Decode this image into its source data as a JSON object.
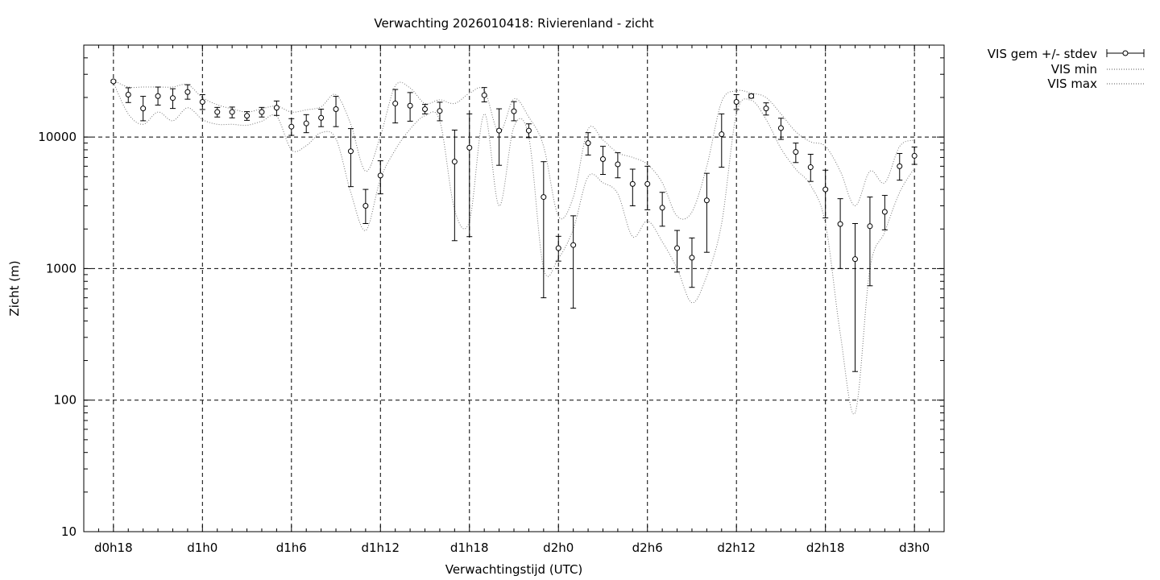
{
  "chart_data": {
    "type": "line",
    "title": "Verwachting 2026010418: Rivierenland - zicht",
    "xlabel": "Verwachtingstijd (UTC)",
    "ylabel": "Zicht (m)",
    "yscale": "log",
    "ylim": [
      10,
      50000
    ],
    "xlim": [
      -2,
      56
    ],
    "grid": true,
    "legend_position": "outside-top-right",
    "x_ticks": [
      {
        "x": 0,
        "label": "d0h18"
      },
      {
        "x": 6,
        "label": "d1h0"
      },
      {
        "x": 12,
        "label": "d1h6"
      },
      {
        "x": 18,
        "label": "d1h12"
      },
      {
        "x": 24,
        "label": "d1h18"
      },
      {
        "x": 30,
        "label": "d2h0"
      },
      {
        "x": 36,
        "label": "d2h6"
      },
      {
        "x": 42,
        "label": "d2h12"
      },
      {
        "x": 48,
        "label": "d2h18"
      },
      {
        "x": 54,
        "label": "d3h0"
      }
    ],
    "y_ticks": [
      {
        "y": 10,
        "label": "10"
      },
      {
        "y": 100,
        "label": "100"
      },
      {
        "y": 1000,
        "label": "1000"
      },
      {
        "y": 10000,
        "label": "10000"
      }
    ],
    "x": [
      0,
      1,
      2,
      3,
      4,
      5,
      6,
      7,
      8,
      9,
      10,
      11,
      12,
      13,
      14,
      15,
      16,
      17,
      18,
      19,
      20,
      21,
      22,
      23,
      24,
      25,
      26,
      27,
      28,
      29,
      30,
      31,
      32,
      33,
      34,
      35,
      36,
      37,
      38,
      39,
      40,
      41,
      42,
      43,
      44,
      45,
      46,
      47,
      48,
      49,
      50,
      51,
      52,
      53,
      54
    ],
    "series": [
      {
        "name": "VIS gem +/- stdev",
        "style": "errorbars",
        "mean": [
          26500,
          21000,
          16500,
          20500,
          19800,
          22000,
          18500,
          15500,
          15500,
          14500,
          15500,
          16700,
          12000,
          12700,
          14000,
          16300,
          7800,
          3000,
          5100,
          18000,
          17300,
          16300,
          15800,
          6500,
          8300,
          20800,
          11200,
          15700,
          11200,
          3500,
          1430,
          1510,
          9000,
          6800,
          6200,
          4400,
          4400,
          2900,
          1430,
          1210,
          3300,
          10500,
          18500,
          20500,
          16500,
          11700,
          7700,
          5900,
          4000,
          2180,
          1180,
          2100,
          2700,
          6000,
          7200
        ],
        "lower": [
          26000,
          18300,
          13300,
          17500,
          16500,
          19400,
          16200,
          14200,
          14000,
          13400,
          14200,
          14600,
          10300,
          10800,
          12000,
          12000,
          4200,
          2200,
          3700,
          12800,
          13200,
          15000,
          13300,
          1630,
          1750,
          18500,
          6100,
          13300,
          9900,
          600,
          1140,
          500,
          7300,
          5200,
          4900,
          3000,
          2800,
          2100,
          940,
          720,
          1330,
          5900,
          16200,
          19800,
          14700,
          9600,
          6400,
          4600,
          2430,
          1000,
          165,
          740,
          1970,
          4700,
          6200
        ],
        "upper": [
          27000,
          23700,
          20400,
          24000,
          23300,
          25000,
          21000,
          16800,
          16900,
          15600,
          16800,
          18800,
          13800,
          14800,
          16300,
          20400,
          11600,
          4000,
          6600,
          23000,
          21800,
          17700,
          18400,
          11300,
          15000,
          23800,
          16400,
          18600,
          12600,
          6500,
          1760,
          2520,
          10800,
          8500,
          7600,
          5700,
          6000,
          3800,
          1950,
          1710,
          5300,
          15000,
          21000,
          21200,
          18200,
          13900,
          9000,
          7400,
          5600,
          3400,
          2200,
          3500,
          3600,
          7500,
          8400
        ]
      },
      {
        "name": "VIS min",
        "style": "dotted",
        "values": [
          26000,
          15000,
          12500,
          15500,
          13300,
          16700,
          13600,
          12500,
          12500,
          12300,
          13200,
          14400,
          8000,
          8600,
          10800,
          9700,
          3800,
          1950,
          4800,
          8000,
          11500,
          14500,
          13300,
          2800,
          2300,
          15000,
          3000,
          12000,
          10000,
          1000,
          1200,
          2000,
          5000,
          4500,
          3700,
          1750,
          2300,
          1600,
          1000,
          550,
          880,
          2200,
          15000,
          19000,
          13600,
          8200,
          5700,
          4300,
          2200,
          320,
          80,
          1000,
          1900,
          3800,
          5800
        ]
      },
      {
        "name": "VIS max",
        "style": "dotted",
        "values": [
          27000,
          24000,
          24000,
          24000,
          24000,
          25000,
          20000,
          17600,
          16400,
          15500,
          16400,
          17200,
          15500,
          16100,
          17000,
          21000,
          12500,
          5500,
          10200,
          24500,
          23600,
          18000,
          19200,
          18000,
          21500,
          22700,
          10800,
          19500,
          14200,
          8500,
          2500,
          3500,
          11500,
          9500,
          7600,
          7000,
          6200,
          4500,
          2500,
          2700,
          6000,
          18500,
          22500,
          21600,
          20000,
          15000,
          11000,
          9200,
          8500,
          5500,
          3000,
          5500,
          4500,
          8500,
          9500
        ]
      }
    ]
  }
}
